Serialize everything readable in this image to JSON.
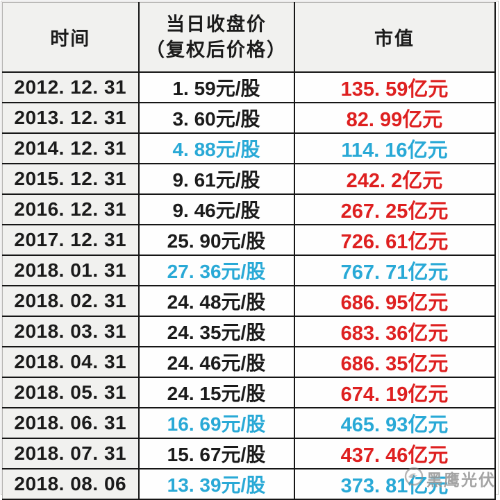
{
  "table": {
    "headers": {
      "time": "时间",
      "price_line1": "当日收盘价",
      "price_line2": "（复权后价格）",
      "market_cap": "市值"
    },
    "rows": [
      {
        "date": "2012. 12. 31",
        "price": "1. 59元/股",
        "price_color": "black",
        "cap": "135. 59亿元",
        "cap_color": "red"
      },
      {
        "date": "2013. 12. 31",
        "price": "3. 60元/股",
        "price_color": "black",
        "cap": "82. 99亿元",
        "cap_color": "red"
      },
      {
        "date": "2014. 12. 31",
        "price": "4. 88元/股",
        "price_color": "cyan",
        "cap": "114. 16亿元",
        "cap_color": "cyan"
      },
      {
        "date": "2015. 12. 31",
        "price": "9. 61元/股",
        "price_color": "black",
        "cap": "242. 2亿元",
        "cap_color": "red"
      },
      {
        "date": "2016. 12. 31",
        "price": "9. 46元/股",
        "price_color": "black",
        "cap": "267. 25亿元",
        "cap_color": "red"
      },
      {
        "date": "2017. 12. 31",
        "price": "25. 90元/股",
        "price_color": "black",
        "cap": "726. 61亿元",
        "cap_color": "red"
      },
      {
        "date": "2018. 01. 31",
        "price": "27. 36元/股",
        "price_color": "cyan",
        "cap": "767. 71亿元",
        "cap_color": "cyan"
      },
      {
        "date": "2018. 02. 31",
        "price": "24. 48元/股",
        "price_color": "black",
        "cap": "686. 95亿元",
        "cap_color": "red"
      },
      {
        "date": "2018. 03. 31",
        "price": "24. 35元/股",
        "price_color": "black",
        "cap": "683. 36亿元",
        "cap_color": "red"
      },
      {
        "date": "2018. 04. 31",
        "price": "24. 46元/股",
        "price_color": "black",
        "cap": "686. 35亿元",
        "cap_color": "red"
      },
      {
        "date": "2018. 05. 31",
        "price": "24. 15元/股",
        "price_color": "black",
        "cap": "674. 19亿元",
        "cap_color": "red"
      },
      {
        "date": "2018. 06. 31",
        "price": "16. 69元/股",
        "price_color": "cyan",
        "cap": "465. 93亿元",
        "cap_color": "cyan"
      },
      {
        "date": "2018. 07. 31",
        "price": "15. 67元/股",
        "price_color": "black",
        "cap": "437. 46亿元",
        "cap_color": "red"
      },
      {
        "date": "2018. 08. 06",
        "price": "13. 39元/股",
        "price_color": "cyan",
        "cap": "373. 81亿元",
        "cap_color": "cyan"
      }
    ]
  },
  "watermark": {
    "text": "黑鹰光伏",
    "logo": "eagle-logo-icon"
  },
  "colors": {
    "red": "#de2020",
    "cyan": "#29a9d6",
    "text_black": "#1b1b1b",
    "header_bg": "#f1f1ef",
    "row_bg": "#fefefe",
    "border_black": "#161616",
    "gridline_gray": "#b5b4b2"
  },
  "chart_data": {
    "type": "table",
    "title": "",
    "columns": [
      "时间",
      "当日收盘价（复权后价格）",
      "市值"
    ],
    "units": {
      "price": "元/股",
      "market_cap": "亿元"
    },
    "rows": [
      {
        "date": "2012.12.31",
        "price": 1.59,
        "market_cap": 135.59
      },
      {
        "date": "2013.12.31",
        "price": 3.6,
        "market_cap": 82.99
      },
      {
        "date": "2014.12.31",
        "price": 4.88,
        "market_cap": 114.16
      },
      {
        "date": "2015.12.31",
        "price": 9.61,
        "market_cap": 242.2
      },
      {
        "date": "2016.12.31",
        "price": 9.46,
        "market_cap": 267.25
      },
      {
        "date": "2017.12.31",
        "price": 25.9,
        "market_cap": 726.61
      },
      {
        "date": "2018.01.31",
        "price": 27.36,
        "market_cap": 767.71
      },
      {
        "date": "2018.02.31",
        "price": 24.48,
        "market_cap": 686.95
      },
      {
        "date": "2018.03.31",
        "price": 24.35,
        "market_cap": 683.36
      },
      {
        "date": "2018.04.31",
        "price": 24.46,
        "market_cap": 686.35
      },
      {
        "date": "2018.05.31",
        "price": 24.15,
        "market_cap": 674.19
      },
      {
        "date": "2018.06.31",
        "price": 16.69,
        "market_cap": 465.93
      },
      {
        "date": "2018.07.31",
        "price": 15.67,
        "market_cap": 437.46
      },
      {
        "date": "2018.08.06",
        "price": 13.39,
        "market_cap": 373.81
      }
    ]
  }
}
